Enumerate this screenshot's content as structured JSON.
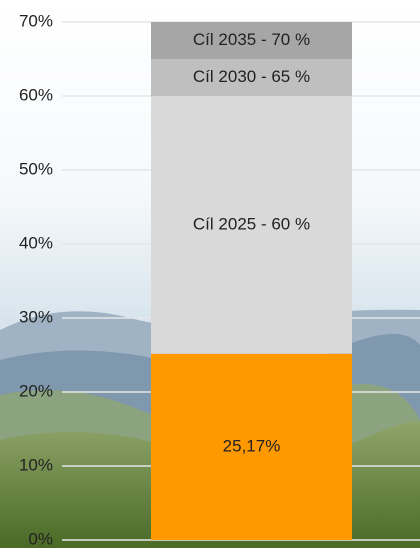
{
  "chart_data": {
    "type": "stacked-bar",
    "categories": [
      null
    ],
    "series": [
      {
        "color": "#ff9900",
        "values": [
          25.17
        ],
        "value_labels": [
          "25,17%"
        ]
      },
      {
        "name": "Cíl 2025 - 60 %",
        "color": "#d9d9d9",
        "values": [
          34.83
        ]
      },
      {
        "name": "Cíl 2030 - 65 %",
        "color": "#bfbfbf",
        "values": [
          5
        ]
      },
      {
        "name": "Cíl 2035 - 70 %",
        "color": "#a6a6a6",
        "values": [
          5
        ]
      }
    ],
    "ylim": [
      0,
      70
    ],
    "yticks": [
      {
        "value": 0,
        "label": "0%"
      },
      {
        "value": 10,
        "label": "10%"
      },
      {
        "value": 20,
        "label": "20%"
      },
      {
        "value": 30,
        "label": "30%"
      },
      {
        "value": 40,
        "label": "40%"
      },
      {
        "value": 50,
        "label": "50%"
      },
      {
        "value": 60,
        "label": "60%"
      },
      {
        "value": 70,
        "label": "70%"
      }
    ],
    "grid": true
  }
}
